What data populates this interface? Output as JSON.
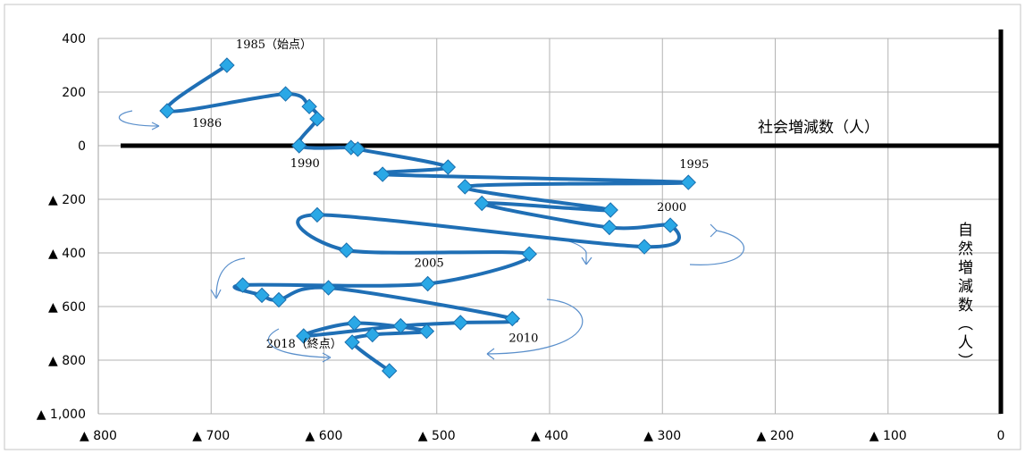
{
  "chart_data": {
    "type": "scatter",
    "series_style": "connected diamond markers",
    "x_axis_title": "社会増減数（人）",
    "y_axis_title": "自然増減数（人）",
    "xlim": [
      -800,
      0
    ],
    "ylim": [
      -1000,
      400
    ],
    "x_tick_labels": [
      {
        "value": -800,
        "label": "▲ 800"
      },
      {
        "value": -700,
        "label": "▲ 700"
      },
      {
        "value": -600,
        "label": "▲ 600"
      },
      {
        "value": -500,
        "label": "▲ 500"
      },
      {
        "value": -400,
        "label": "▲ 400"
      },
      {
        "value": -300,
        "label": "▲ 300"
      },
      {
        "value": -200,
        "label": "▲ 200"
      },
      {
        "value": -100,
        "label": "▲ 100"
      },
      {
        "value": 0,
        "label": "0"
      }
    ],
    "y_tick_labels": [
      {
        "value": 400,
        "label": "400"
      },
      {
        "value": 200,
        "label": "200"
      },
      {
        "value": 0,
        "label": "0"
      },
      {
        "value": -200,
        "label": "▲ 200"
      },
      {
        "value": -400,
        "label": "▲ 400"
      },
      {
        "value": -600,
        "label": "▲ 600"
      },
      {
        "value": -800,
        "label": "▲ 800"
      },
      {
        "value": -1000,
        "label": "▲ 1,000"
      }
    ],
    "grid": true,
    "color": "#1F6FB5",
    "marker_color": "#2AA8E6",
    "points": [
      {
        "year": 1985,
        "x": -686,
        "y": 300
      },
      {
        "year": 1986,
        "x": -739,
        "y": 130
      },
      {
        "year": 1987,
        "x": -634,
        "y": 193
      },
      {
        "year": 1988,
        "x": -613,
        "y": 146
      },
      {
        "year": 1989,
        "x": -606,
        "y": 100
      },
      {
        "year": 1990,
        "x": -622,
        "y": 0
      },
      {
        "year": 1991,
        "x": -576,
        "y": -7
      },
      {
        "year": 1992,
        "x": -570,
        "y": -13
      },
      {
        "year": 1993,
        "x": -490,
        "y": -80
      },
      {
        "year": 1994,
        "x": -548,
        "y": -107
      },
      {
        "year": 1995,
        "x": -277,
        "y": -137
      },
      {
        "year": 1996,
        "x": -475,
        "y": -153
      },
      {
        "year": 1997,
        "x": -346,
        "y": -240
      },
      {
        "year": 1998,
        "x": -460,
        "y": -215
      },
      {
        "year": 1999,
        "x": -347,
        "y": -305
      },
      {
        "year": 2000,
        "x": -293,
        "y": -297
      },
      {
        "year": 2001,
        "x": -316,
        "y": -377
      },
      {
        "year": 2002,
        "x": -606,
        "y": -258
      },
      {
        "year": 2003,
        "x": -580,
        "y": -390
      },
      {
        "year": 2004,
        "x": -418,
        "y": -404
      },
      {
        "year": 2005,
        "x": -508,
        "y": -515
      },
      {
        "year": 2006,
        "x": -672,
        "y": -520
      },
      {
        "year": 2007,
        "x": -655,
        "y": -558
      },
      {
        "year": 2008,
        "x": -640,
        "y": -575
      },
      {
        "year": 2009,
        "x": -596,
        "y": -530
      },
      {
        "year": 2010,
        "x": -433,
        "y": -645
      },
      {
        "year": 2011,
        "x": -479,
        "y": -660
      },
      {
        "year": 2012,
        "x": -532,
        "y": -672
      },
      {
        "year": 2013,
        "x": -618,
        "y": -710
      },
      {
        "year": 2014,
        "x": -573,
        "y": -662
      },
      {
        "year": 2015,
        "x": -509,
        "y": -692
      },
      {
        "year": 2016,
        "x": -557,
        "y": -705
      },
      {
        "year": 2017,
        "x": -575,
        "y": -733
      },
      {
        "year": 2018,
        "x": -542,
        "y": -840
      }
    ],
    "annotations": [
      {
        "text": "1985（始点）",
        "x": -686,
        "y": 300
      },
      {
        "text": "1986",
        "x": -739,
        "y": 130
      },
      {
        "text": "1990",
        "x": -622,
        "y": 0
      },
      {
        "text": "1995",
        "x": -277,
        "y": -137
      },
      {
        "text": "2000",
        "x": -293,
        "y": -297
      },
      {
        "text": "2005",
        "x": -508,
        "y": -515
      },
      {
        "text": "2010",
        "x": -433,
        "y": -645
      },
      {
        "text": "2018（終点）",
        "x": -542,
        "y": -840
      }
    ]
  }
}
